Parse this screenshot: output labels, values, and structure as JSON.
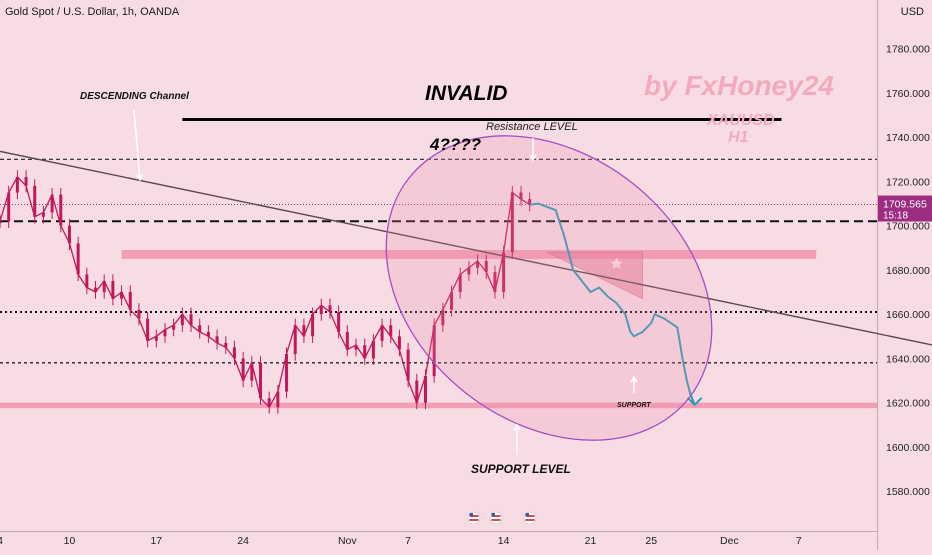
{
  "header": {
    "symbol": "Gold Spot / U.S. Dollar, 1h, OANDA",
    "currency": "USD"
  },
  "price_badge": {
    "price": "1709.565",
    "countdown": "15:18"
  },
  "annotations": {
    "channel": "DESCENDING Channel",
    "invalid": "INVALID",
    "question": "4????",
    "resistance": "Resistance LEVEL",
    "support_small": "SUPPORT",
    "support_level": "SUPPORT LEVEL",
    "watermark_author": "by FxHoney24",
    "watermark_symbol": "XAUUSD",
    "watermark_tf": "H1"
  },
  "colors": {
    "background": "#f8dce3",
    "candles": "#c2185b",
    "forecast": "#2a9bb8",
    "zone": "#f08aa6",
    "ellipse_stroke": "#a24fc4",
    "badge": "#9c2d82"
  },
  "chart_data": {
    "type": "line",
    "title": "Gold Spot / U.S. Dollar, 1h, OANDA",
    "ylabel": "USD",
    "ylim": [
      1562,
      1802
    ],
    "y_ticks": [
      1780,
      1760,
      1740,
      1720,
      1700,
      1680,
      1660,
      1640,
      1620,
      1600,
      1580
    ],
    "y_tick_labels": [
      "1780.000",
      "1760.000",
      "1740.000",
      "1720.000",
      "1700.000",
      "1680.000",
      "1660.000",
      "1640.000",
      "1620.000",
      "1600.000",
      "1580.000"
    ],
    "x_tick_labels": [
      "4",
      "10",
      "17",
      "24",
      "Nov",
      "7",
      "14",
      "21",
      "25",
      "Dec",
      "7"
    ],
    "x_tick_index": [
      0,
      8,
      18,
      28,
      40,
      47,
      58,
      68,
      75,
      84,
      92
    ],
    "x_range": [
      0,
      101
    ],
    "series": [
      {
        "values": [
          1702,
          1715,
          1722,
          1718,
          1704,
          1706,
          1714,
          1700,
          1692,
          1678,
          1672,
          1670,
          1675,
          1667,
          1670,
          1662,
          1658,
          1648,
          1650,
          1653,
          1655,
          1660,
          1655,
          1652,
          1650,
          1647,
          1645,
          1640,
          1630,
          1638,
          1622,
          1618,
          1625,
          1642,
          1655,
          1650,
          1660,
          1664,
          1661,
          1652,
          1644,
          1646,
          1640,
          1648,
          1655,
          1650,
          1644,
          1630,
          1620,
          1632,
          1655,
          1662,
          1670,
          1678,
          1681,
          1684,
          1679,
          1670,
          1688,
          1715,
          1712,
          1709.5
        ]
      }
    ],
    "forecast": [
      [
        61,
        1709.5
      ],
      [
        62,
        1710
      ],
      [
        64,
        1707
      ],
      [
        65,
        1695
      ],
      [
        66,
        1680
      ],
      [
        68,
        1670
      ],
      [
        69,
        1672
      ],
      [
        70,
        1668
      ],
      [
        71,
        1665
      ],
      [
        72,
        1660
      ],
      [
        72.6,
        1652
      ],
      [
        73,
        1650
      ],
      [
        74,
        1652
      ],
      [
        75,
        1656
      ],
      [
        75.4,
        1660
      ],
      [
        76.5,
        1658
      ],
      [
        78,
        1654
      ],
      [
        78.6,
        1640
      ],
      [
        79.1,
        1630
      ],
      [
        79.5,
        1624
      ],
      [
        80,
        1619
      ]
    ],
    "horizontal_levels": [
      1730,
      1702,
      1661,
      1638
    ],
    "support_zone": [
      1617.5,
      1620
    ],
    "resistance_zone": [
      1685,
      1689
    ],
    "current_price": 1709.565,
    "trendline": [
      [
        -0.5,
        1734
      ],
      [
        118.5,
        1637
      ]
    ],
    "invalid_line": [
      [
        21,
        1748
      ],
      [
        90,
        1748
      ]
    ]
  }
}
